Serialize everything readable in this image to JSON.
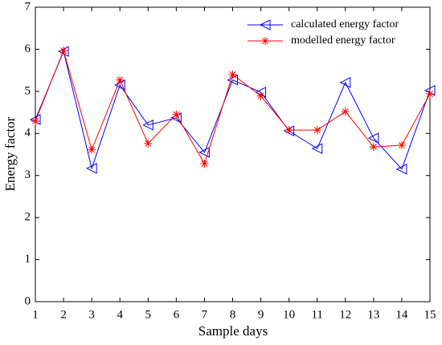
{
  "chart_data": {
    "type": "line",
    "x": [
      1,
      2,
      3,
      4,
      5,
      6,
      7,
      8,
      9,
      10,
      11,
      12,
      13,
      14,
      15
    ],
    "xlabel": "Sample days",
    "ylabel": "Energy factor",
    "xlim": [
      1,
      15
    ],
    "xticks": [
      1,
      2,
      3,
      4,
      5,
      6,
      7,
      8,
      9,
      10,
      11,
      12,
      13,
      14,
      15
    ],
    "ylim": [
      0,
      7
    ],
    "yticks": [
      0,
      1,
      2,
      3,
      4,
      5,
      6,
      7
    ],
    "legend": "upper right",
    "grid": false,
    "series": [
      {
        "name": "calculated energy factor",
        "color": "#0000ff",
        "marker": "triangle-left",
        "values": [
          4.33,
          5.95,
          3.17,
          5.15,
          4.2,
          4.37,
          3.55,
          5.27,
          4.98,
          4.06,
          3.64,
          5.21,
          3.89,
          3.15,
          5.02
        ]
      },
      {
        "name": "modelled energy factor",
        "color": "#ff0000",
        "marker": "asterisk",
        "values": [
          4.29,
          5.97,
          3.61,
          5.27,
          3.76,
          4.45,
          3.28,
          5.4,
          4.89,
          4.08,
          4.08,
          4.52,
          3.68,
          3.72,
          4.94
        ]
      }
    ]
  }
}
